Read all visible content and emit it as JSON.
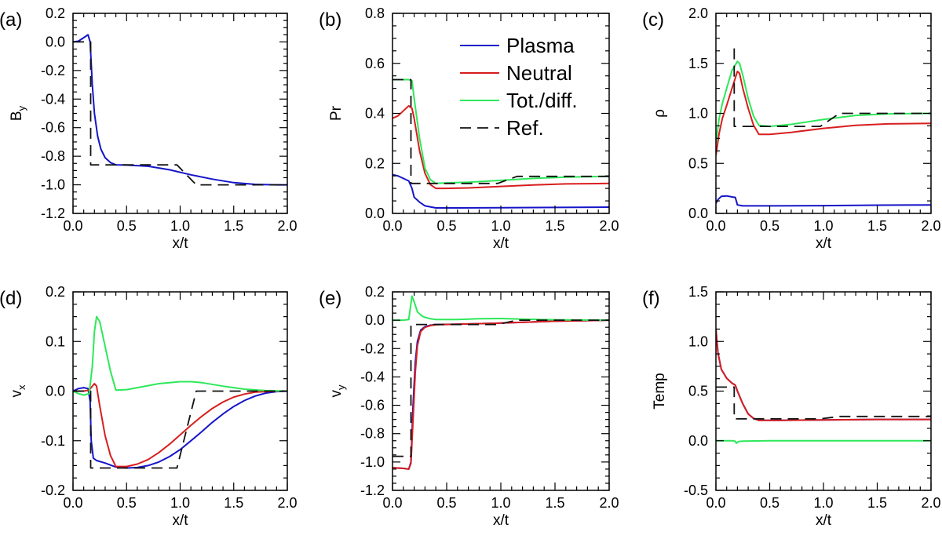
{
  "figure": {
    "legend": [
      {
        "label": "Plasma",
        "color": "#1515c8",
        "dash": false
      },
      {
        "label": "Neutral",
        "color": "#d81e1e",
        "dash": false
      },
      {
        "label": "Tot./diff.",
        "color": "#2ee85a",
        "dash": false
      },
      {
        "label": "Ref.",
        "color": "#111111",
        "dash": true
      }
    ]
  },
  "chart_data": [
    {
      "type": "line",
      "panel": "(a)",
      "title": "",
      "xlabel": "x/t",
      "ylabel": "B",
      "ylabel_sub": "y",
      "xlim": [
        0,
        2
      ],
      "ylim": [
        -1.2,
        0.2
      ],
      "xticks": [
        "0.0",
        "0.5",
        "1.0",
        "1.5",
        "2.0"
      ],
      "yticks": [
        "0.2",
        "0.0",
        "-0.2",
        "-0.4",
        "-0.6",
        "-0.8",
        "-1.0",
        "-1.2"
      ],
      "series": [
        {
          "name": "Plasma",
          "color": "#1515c8",
          "dash": false,
          "x": [
            0,
            0.05,
            0.1,
            0.14,
            0.16,
            0.18,
            0.2,
            0.23,
            0.26,
            0.3,
            0.35,
            0.4,
            0.5,
            0.7,
            0.9,
            1.1,
            1.3,
            1.5,
            1.7,
            1.9,
            2.0
          ],
          "y": [
            0,
            0.005,
            0.03,
            0.05,
            0.0,
            -0.3,
            -0.5,
            -0.66,
            -0.75,
            -0.81,
            -0.845,
            -0.86,
            -0.862,
            -0.87,
            -0.895,
            -0.93,
            -0.96,
            -0.985,
            -0.997,
            -1.0,
            -1.0
          ]
        },
        {
          "name": "Ref.",
          "color": "#111111",
          "dash": true,
          "x": [
            0,
            0.165,
            0.165,
            0.97,
            1.15,
            2.0
          ],
          "y": [
            0,
            0,
            -0.86,
            -0.86,
            -1.0,
            -1.0
          ]
        }
      ]
    },
    {
      "type": "line",
      "panel": "(b)",
      "title": "",
      "xlabel": "x/t",
      "ylabel": "Pr",
      "ylabel_sub": "",
      "xlim": [
        0,
        2
      ],
      "ylim": [
        0,
        0.8
      ],
      "xticks": [
        "0.0",
        "0.5",
        "1.0",
        "1.5",
        "2.0"
      ],
      "yticks": [
        "0.8",
        "0.6",
        "0.4",
        "0.2",
        "0.0"
      ],
      "series": [
        {
          "name": "Plasma",
          "color": "#1515c8",
          "dash": false,
          "x": [
            0,
            0.05,
            0.1,
            0.15,
            0.18,
            0.2,
            0.25,
            0.3,
            0.4,
            0.6,
            1.0,
            1.5,
            2.0
          ],
          "y": [
            0.155,
            0.15,
            0.14,
            0.13,
            0.1,
            0.065,
            0.045,
            0.03,
            0.022,
            0.022,
            0.023,
            0.024,
            0.025
          ]
        },
        {
          "name": "Neutral",
          "color": "#d81e1e",
          "dash": false,
          "x": [
            0,
            0.05,
            0.1,
            0.15,
            0.18,
            0.2,
            0.25,
            0.3,
            0.35,
            0.4,
            0.5,
            0.7,
            1.0,
            1.3,
            1.6,
            2.0
          ],
          "y": [
            0.38,
            0.39,
            0.41,
            0.43,
            0.42,
            0.38,
            0.25,
            0.16,
            0.115,
            0.1,
            0.1,
            0.102,
            0.108,
            0.114,
            0.118,
            0.12
          ]
        },
        {
          "name": "Tot./diff.",
          "color": "#2ee85a",
          "dash": false,
          "x": [
            0,
            0.05,
            0.1,
            0.15,
            0.18,
            0.2,
            0.25,
            0.3,
            0.35,
            0.4,
            0.5,
            0.7,
            1.0,
            1.3,
            1.6,
            2.0
          ],
          "y": [
            0.535,
            0.535,
            0.535,
            0.535,
            0.53,
            0.46,
            0.3,
            0.18,
            0.135,
            0.12,
            0.122,
            0.125,
            0.132,
            0.14,
            0.145,
            0.148
          ]
        },
        {
          "name": "Ref.",
          "color": "#111111",
          "dash": true,
          "x": [
            0,
            0.17,
            0.17,
            0.97,
            1.15,
            2.0
          ],
          "y": [
            0.535,
            0.535,
            0.12,
            0.12,
            0.148,
            0.148
          ]
        }
      ]
    },
    {
      "type": "line",
      "panel": "(c)",
      "title": "",
      "xlabel": "x/t",
      "ylabel": "ρ",
      "ylabel_sub": "",
      "xlim": [
        0,
        2
      ],
      "ylim": [
        0,
        2
      ],
      "xticks": [
        "0.0",
        "0.5",
        "1.0",
        "1.5",
        "2.0"
      ],
      "yticks": [
        "2.0",
        "1.5",
        "1.0",
        "0.5",
        "0.0"
      ],
      "series": [
        {
          "name": "Plasma",
          "color": "#1515c8",
          "dash": false,
          "x": [
            0,
            0.02,
            0.05,
            0.1,
            0.15,
            0.18,
            0.2,
            0.25,
            0.5,
            1.0,
            1.5,
            2.0
          ],
          "y": [
            0.1,
            0.14,
            0.17,
            0.175,
            0.165,
            0.16,
            0.085,
            0.075,
            0.075,
            0.078,
            0.082,
            0.085
          ]
        },
        {
          "name": "Neutral",
          "color": "#d81e1e",
          "dash": false,
          "x": [
            0,
            0.03,
            0.06,
            0.1,
            0.15,
            0.2,
            0.22,
            0.25,
            0.3,
            0.35,
            0.4,
            0.5,
            0.7,
            1.0,
            1.3,
            1.6,
            2.0
          ],
          "y": [
            0.58,
            0.8,
            0.95,
            1.08,
            1.25,
            1.42,
            1.4,
            1.25,
            1.05,
            0.88,
            0.79,
            0.79,
            0.81,
            0.85,
            0.88,
            0.895,
            0.9
          ]
        },
        {
          "name": "Tot./diff.",
          "color": "#2ee85a",
          "dash": false,
          "x": [
            0,
            0.03,
            0.06,
            0.1,
            0.15,
            0.2,
            0.22,
            0.25,
            0.3,
            0.35,
            0.4,
            0.5,
            0.7,
            1.0,
            1.3,
            1.6,
            2.0
          ],
          "y": [
            0.7,
            0.95,
            1.1,
            1.25,
            1.43,
            1.52,
            1.5,
            1.38,
            1.15,
            0.97,
            0.88,
            0.87,
            0.89,
            0.94,
            0.98,
            0.995,
            1.0
          ]
        },
        {
          "name": "Ref.",
          "color": "#111111",
          "dash": true,
          "x": [
            0.17,
            0.17,
            0.97,
            1.15,
            2.0
          ],
          "y": [
            1.65,
            0.87,
            0.87,
            1.0,
            1.0
          ]
        }
      ]
    },
    {
      "type": "line",
      "panel": "(d)",
      "title": "",
      "xlabel": "x/t",
      "ylabel": "v",
      "ylabel_sub": "x",
      "xlim": [
        0,
        2
      ],
      "ylim": [
        -0.2,
        0.2
      ],
      "xticks": [
        "0.0",
        "0.5",
        "1.0",
        "1.5",
        "2.0"
      ],
      "yticks": [
        "0.2",
        "0.1",
        "0.0",
        "-0.1",
        "-0.2"
      ],
      "series": [
        {
          "name": "Plasma",
          "color": "#1515c8",
          "dash": false,
          "x": [
            0,
            0.05,
            0.1,
            0.14,
            0.16,
            0.17,
            0.19,
            0.22,
            0.3,
            0.4,
            0.5,
            0.6,
            0.7,
            0.8,
            0.9,
            1.0,
            1.1,
            1.2,
            1.3,
            1.4,
            1.5,
            1.6,
            1.7,
            1.8,
            1.9,
            2.0
          ],
          "y": [
            0,
            0.005,
            0.007,
            0.005,
            -0.02,
            -0.1,
            -0.135,
            -0.14,
            -0.145,
            -0.153,
            -0.155,
            -0.154,
            -0.15,
            -0.143,
            -0.132,
            -0.118,
            -0.1,
            -0.082,
            -0.063,
            -0.046,
            -0.031,
            -0.019,
            -0.01,
            -0.004,
            -0.001,
            0
          ]
        },
        {
          "name": "Neutral",
          "color": "#d81e1e",
          "dash": false,
          "x": [
            0,
            0.1,
            0.15,
            0.18,
            0.2,
            0.22,
            0.25,
            0.3,
            0.35,
            0.4,
            0.5,
            0.6,
            0.7,
            0.8,
            0.9,
            1.0,
            1.1,
            1.2,
            1.3,
            1.4,
            1.5,
            1.6,
            1.7,
            1.8,
            1.9,
            2.0
          ],
          "y": [
            0,
            0,
            0.002,
            0.01,
            0.015,
            0.01,
            -0.03,
            -0.09,
            -0.13,
            -0.152,
            -0.152,
            -0.147,
            -0.138,
            -0.124,
            -0.107,
            -0.088,
            -0.069,
            -0.051,
            -0.035,
            -0.022,
            -0.012,
            -0.006,
            -0.002,
            -0.001,
            0,
            0
          ]
        },
        {
          "name": "Tot./diff.",
          "color": "#2ee85a",
          "dash": false,
          "x": [
            0,
            0.05,
            0.1,
            0.15,
            0.18,
            0.2,
            0.22,
            0.25,
            0.3,
            0.35,
            0.4,
            0.5,
            0.6,
            0.8,
            1.0,
            1.1,
            1.2,
            1.4,
            1.6,
            1.8,
            2.0
          ],
          "y": [
            0,
            -0.005,
            -0.008,
            -0.005,
            0.05,
            0.12,
            0.15,
            0.14,
            0.09,
            0.04,
            0.002,
            0.003,
            0.007,
            0.015,
            0.019,
            0.019,
            0.017,
            0.01,
            0.004,
            0.001,
            0
          ]
        },
        {
          "name": "Ref.",
          "color": "#111111",
          "dash": true,
          "x": [
            0,
            0.165,
            0.165,
            0.97,
            1.15,
            2.0
          ],
          "y": [
            0,
            0,
            -0.155,
            -0.155,
            0,
            0
          ]
        }
      ]
    },
    {
      "type": "line",
      "panel": "(e)",
      "title": "",
      "xlabel": "x/t",
      "ylabel": "v",
      "ylabel_sub": "y",
      "xlim": [
        0,
        2
      ],
      "ylim": [
        -1.2,
        0.2
      ],
      "xticks": [
        "0.0",
        "0.5",
        "1.0",
        "1.5",
        "2.0"
      ],
      "yticks": [
        "0.2",
        "0.0",
        "-0.2",
        "-0.4",
        "-0.6",
        "-0.8",
        "-1.0",
        "-1.2"
      ],
      "series": [
        {
          "name": "Plasma",
          "color": "#1515c8",
          "dash": false,
          "x": [
            0,
            0.1,
            0.15,
            0.17,
            0.19,
            0.21,
            0.23,
            0.26,
            0.3,
            0.35,
            0.4,
            0.6,
            1.0,
            1.5,
            2.0
          ],
          "y": [
            -1.04,
            -1.045,
            -1.05,
            -1.0,
            -0.6,
            -0.3,
            -0.15,
            -0.07,
            -0.045,
            -0.035,
            -0.03,
            -0.028,
            -0.02,
            -0.007,
            0
          ]
        },
        {
          "name": "Neutral",
          "color": "#d81e1e",
          "dash": false,
          "x": [
            0,
            0.1,
            0.15,
            0.17,
            0.19,
            0.21,
            0.23,
            0.26,
            0.3,
            0.35,
            0.4,
            0.6,
            1.0,
            1.5,
            2.0
          ],
          "y": [
            -1.04,
            -1.045,
            -1.05,
            -1.01,
            -0.7,
            -0.37,
            -0.18,
            -0.08,
            -0.05,
            -0.038,
            -0.032,
            -0.028,
            -0.02,
            -0.007,
            0
          ]
        },
        {
          "name": "Tot./diff.",
          "color": "#2ee85a",
          "dash": false,
          "x": [
            0,
            0.1,
            0.15,
            0.18,
            0.2,
            0.23,
            0.27,
            0.3,
            0.35,
            0.4,
            0.6,
            0.8,
            1.0,
            1.2,
            1.5,
            2.0
          ],
          "y": [
            0,
            0,
            0.005,
            0.17,
            0.13,
            0.06,
            0.03,
            0.02,
            0.01,
            0.005,
            0.005,
            0.01,
            0.012,
            0.008,
            0.003,
            0
          ]
        },
        {
          "name": "Ref.",
          "color": "#111111",
          "dash": true,
          "x": [
            0,
            0.17,
            0.17,
            0.97,
            1.15,
            2.0
          ],
          "y": [
            -0.96,
            -0.96,
            -0.03,
            -0.03,
            0,
            0
          ]
        }
      ]
    },
    {
      "type": "line",
      "panel": "(f)",
      "title": "",
      "xlabel": "x/t",
      "ylabel": "Temp",
      "ylabel_sub": "",
      "xlim": [
        0,
        2
      ],
      "ylim": [
        -0.5,
        1.5
      ],
      "xticks": [
        "0.0",
        "0.5",
        "1.0",
        "1.5",
        "2.0"
      ],
      "yticks": [
        "1.5",
        "1.0",
        "0.5",
        "0.0",
        "-0.5"
      ],
      "series": [
        {
          "name": "Plasma",
          "color": "#1515c8",
          "dash": false,
          "x": [
            0,
            0.02,
            0.05,
            0.1,
            0.15,
            0.18,
            0.2,
            0.25,
            0.3,
            0.35,
            0.4,
            0.6,
            1.0,
            1.5,
            2.0
          ],
          "y": [
            1.12,
            0.88,
            0.72,
            0.63,
            0.58,
            0.56,
            0.5,
            0.37,
            0.27,
            0.225,
            0.205,
            0.205,
            0.21,
            0.215,
            0.215
          ]
        },
        {
          "name": "Neutral",
          "color": "#d81e1e",
          "dash": false,
          "x": [
            0,
            0.02,
            0.05,
            0.1,
            0.15,
            0.18,
            0.2,
            0.25,
            0.3,
            0.35,
            0.4,
            0.6,
            1.0,
            1.5,
            2.0
          ],
          "y": [
            1.12,
            0.88,
            0.72,
            0.63,
            0.58,
            0.56,
            0.5,
            0.37,
            0.27,
            0.225,
            0.205,
            0.205,
            0.21,
            0.215,
            0.215
          ]
        },
        {
          "name": "Tot./diff.",
          "color": "#2ee85a",
          "dash": false,
          "x": [
            0,
            0.15,
            0.18,
            0.19,
            0.21,
            0.25,
            0.5,
            1.0,
            1.5,
            2.0
          ],
          "y": [
            0,
            0,
            -0.005,
            -0.025,
            -0.008,
            -0.004,
            0,
            0,
            0,
            0
          ]
        },
        {
          "name": "Ref.",
          "color": "#111111",
          "dash": true,
          "x": [
            0,
            0.17,
            0.17,
            0.97,
            1.15,
            2.0
          ],
          "y": [
            0.54,
            0.54,
            0.22,
            0.22,
            0.245,
            0.245
          ]
        }
      ]
    }
  ]
}
